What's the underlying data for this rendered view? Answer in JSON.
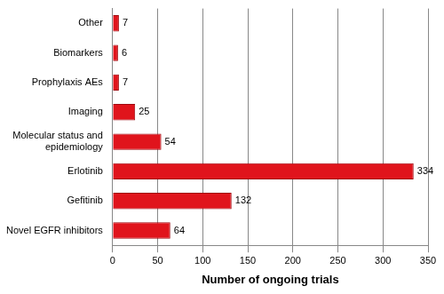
{
  "chart_data": {
    "type": "bar",
    "orientation": "horizontal",
    "x_label": "Number of ongoing trials",
    "categories": [
      "Other",
      "Biomarkers",
      "Prophylaxis AEs",
      "Imaging",
      "Molecular status and epidemiology",
      "Erlotinib",
      "Gefitinib",
      "Novel EGFR inhibitors"
    ],
    "values": [
      7,
      6,
      7,
      25,
      54,
      334,
      132,
      64
    ],
    "color": "#e0141c",
    "xlim": [
      0,
      350
    ],
    "xticks": [
      0,
      50,
      100,
      150,
      200,
      250,
      300,
      350
    ],
    "grid": true,
    "data_labels": true
  }
}
